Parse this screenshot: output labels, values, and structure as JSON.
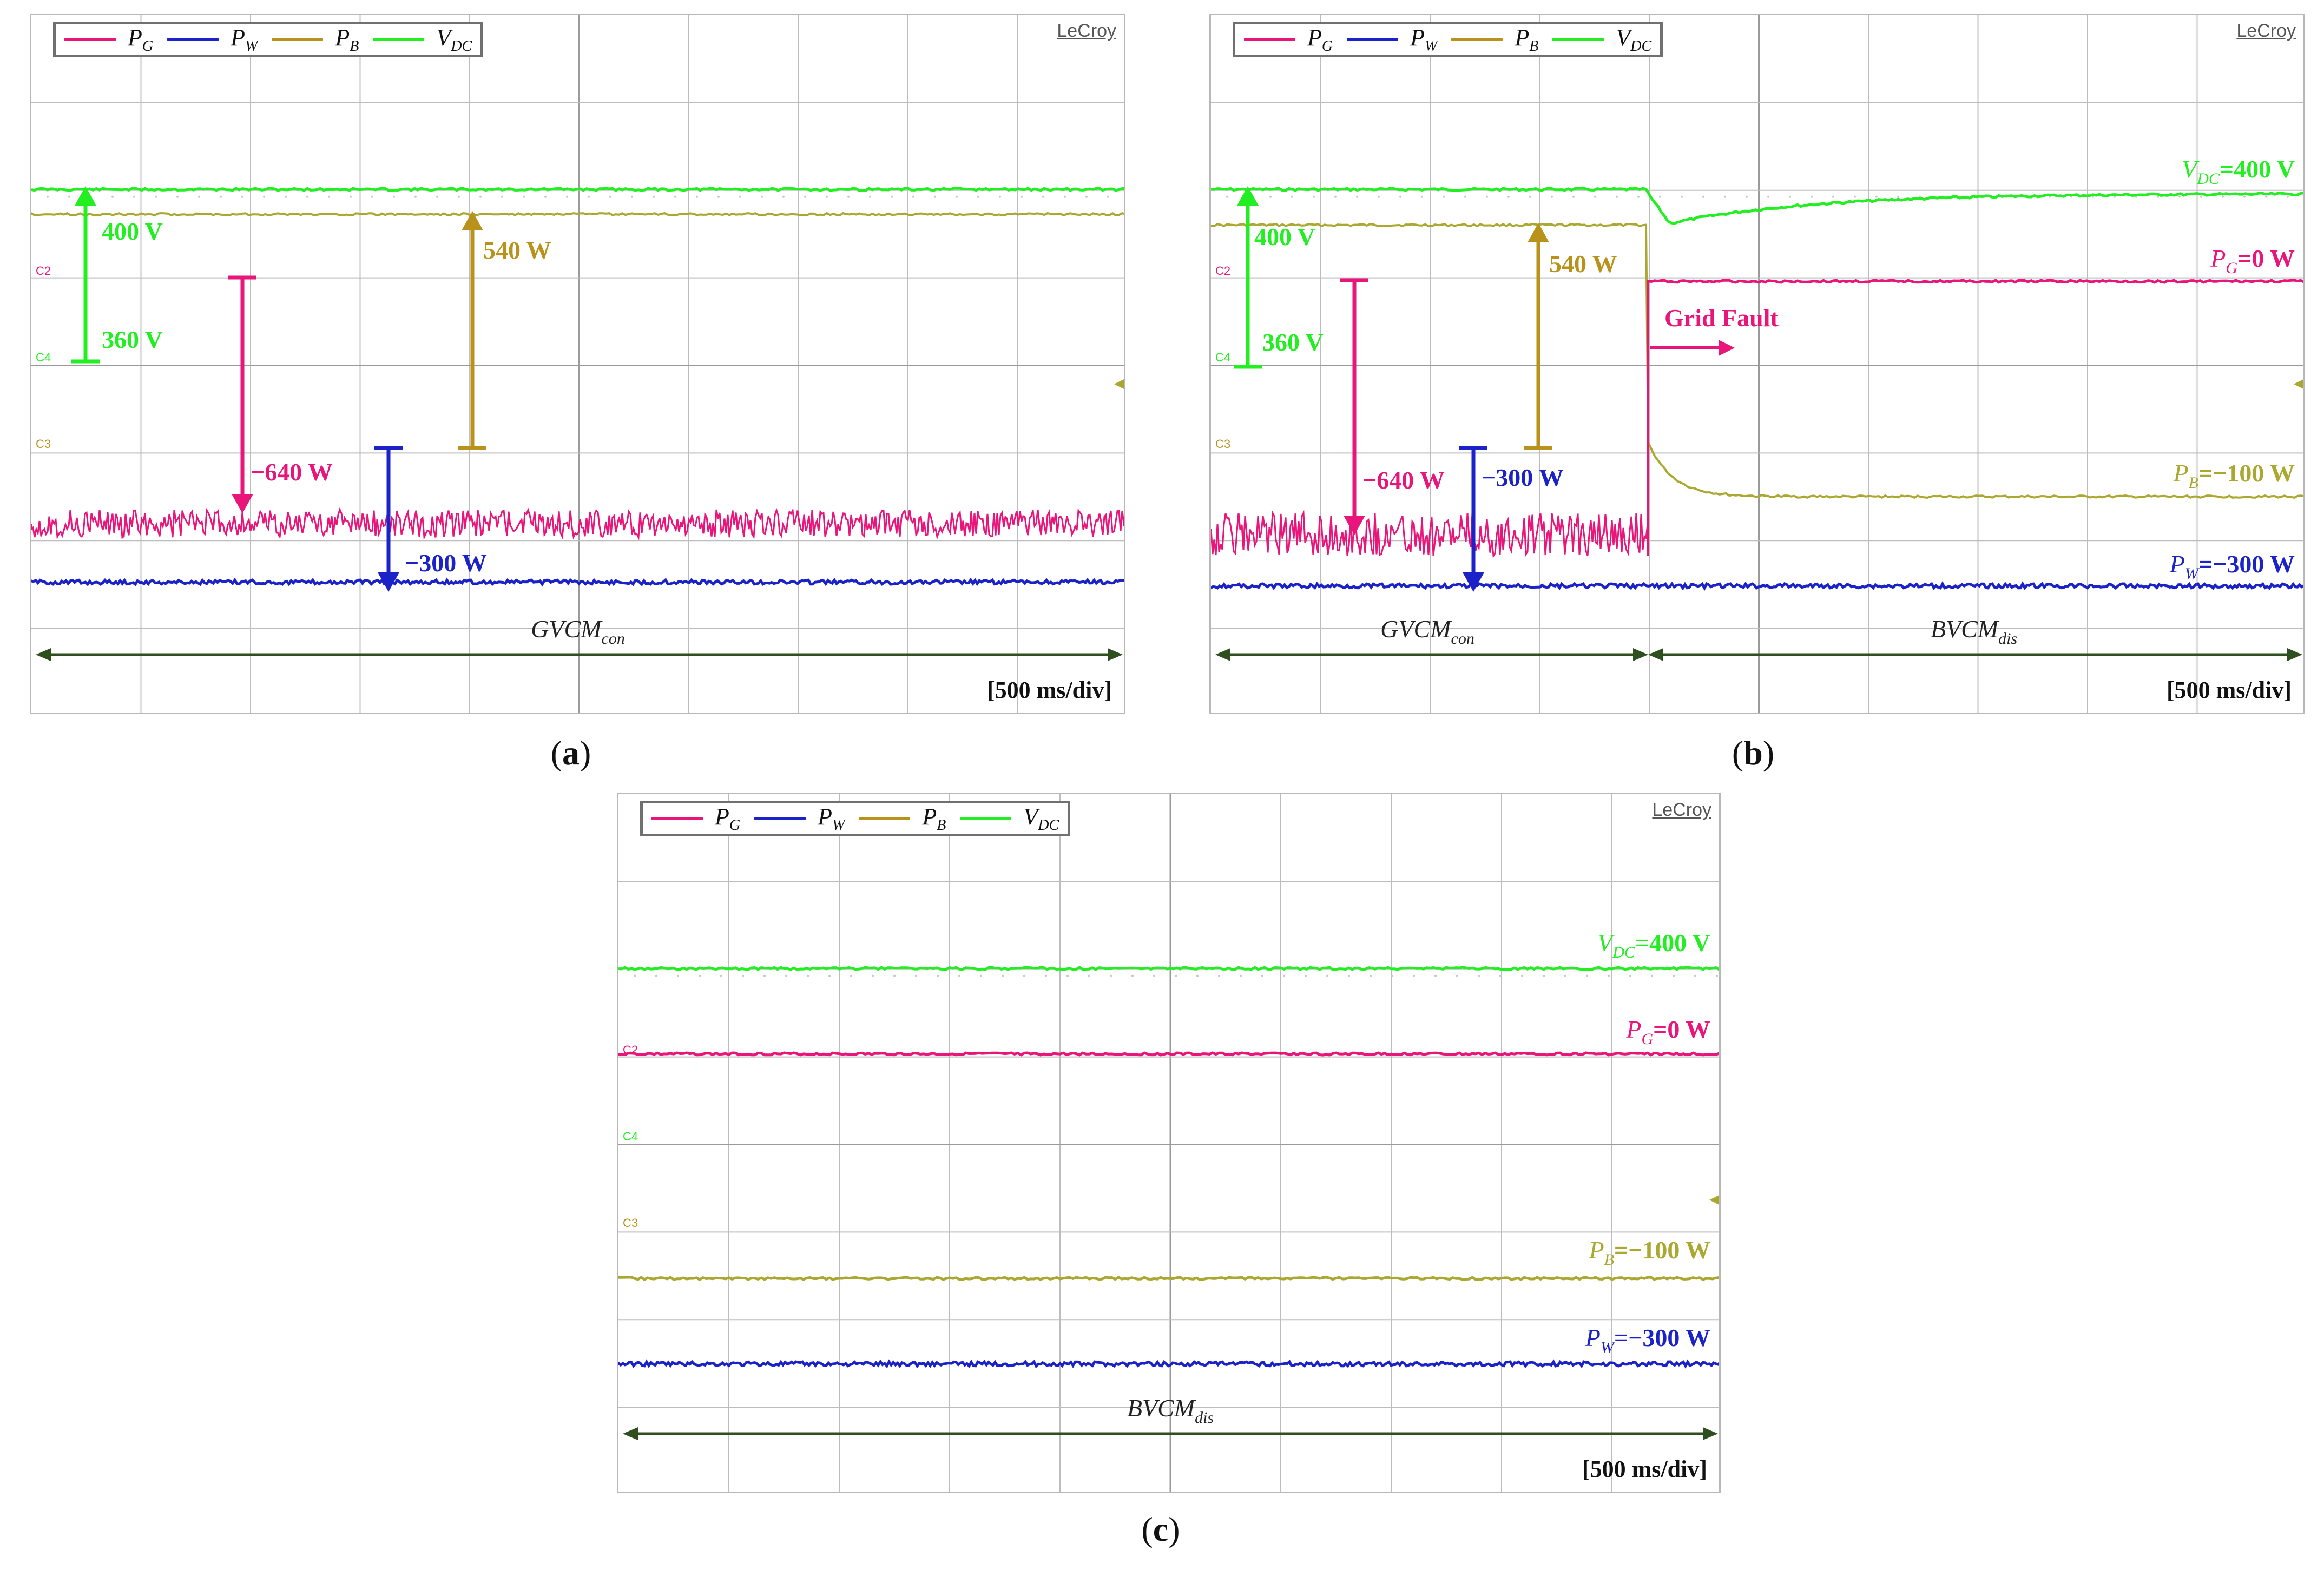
{
  "brand": "LeCroy",
  "timebase": "[500 ms/div]",
  "legend": [
    {
      "symbol": "P",
      "sub": "G",
      "color": "#e8157a"
    },
    {
      "symbol": "P",
      "sub": "W",
      "color": "#1a22c8"
    },
    {
      "symbol": "P",
      "sub": "B",
      "color": "#b8921a"
    },
    {
      "symbol": "V",
      "sub": "DC",
      "color": "#22ee22"
    }
  ],
  "channel_tags": {
    "c2": "C2",
    "c4": "C4",
    "c3": "C3"
  },
  "colors": {
    "pg": "#e8157a",
    "pw": "#1a22c8",
    "pb_arrow": "#b8921a",
    "pb_trace": "#aaa830",
    "vdc": "#22ee22",
    "mode": "#2f4f1f",
    "grid": "#bdbdbd"
  },
  "panels": {
    "a": {
      "caption_open": "(",
      "caption_letter": "a",
      "caption_close": ")"
    },
    "b": {
      "caption_open": "(",
      "caption_letter": "b",
      "caption_close": ")"
    },
    "c": {
      "caption_open": "(",
      "caption_letter": "c",
      "caption_close": ")"
    }
  },
  "chart_data": [
    {
      "type": "line",
      "title": "(a)",
      "xlabel": "time [500 ms/div]",
      "divisions": {
        "x": 10,
        "y": 8
      },
      "series": [
        {
          "name": "V_DC",
          "level": "400 V"
        },
        {
          "name": "P_B",
          "level": "540 W"
        },
        {
          "name": "P_G",
          "level": "-640 W"
        },
        {
          "name": "P_W",
          "level": "-300 W"
        }
      ],
      "annotations": [
        "400 V",
        "360 V",
        "540 W",
        "−640 W",
        "−300 W"
      ],
      "mode": {
        "base": "GVCM",
        "sub": "con"
      }
    },
    {
      "type": "line",
      "title": "(b)",
      "xlabel": "time [500 ms/div]",
      "divisions": {
        "x": 10,
        "y": 8
      },
      "event": "Grid Fault",
      "series": [
        {
          "name": "V_DC",
          "before": "400 V",
          "after": "400 V"
        },
        {
          "name": "P_G",
          "before": "-640 W",
          "after": "0 W"
        },
        {
          "name": "P_B",
          "before": "540 W",
          "after": "-100 W"
        },
        {
          "name": "P_W",
          "before": "-300 W",
          "after": "-300 W"
        }
      ],
      "annotations": [
        "400 V",
        "360 V",
        "540 W",
        "−640 W",
        "−300 W"
      ],
      "end_labels": {
        "vdc": {
          "sym": "V",
          "sub": "DC",
          "val": "=400 V"
        },
        "pg": {
          "sym": "P",
          "sub": "G",
          "val": "=0 W"
        },
        "pb": {
          "sym": "P",
          "sub": "B",
          "val": "=−100 W"
        },
        "pw": {
          "sym": "P",
          "sub": "W",
          "val": "=−300 W"
        }
      },
      "modes": [
        {
          "base": "GVCM",
          "sub": "con"
        },
        {
          "base": "BVCM",
          "sub": "dis"
        }
      ]
    },
    {
      "type": "line",
      "title": "(c)",
      "xlabel": "time [500 ms/div]",
      "divisions": {
        "x": 10,
        "y": 8
      },
      "series": [
        {
          "name": "V_DC",
          "level": "400 V"
        },
        {
          "name": "P_G",
          "level": "0 W"
        },
        {
          "name": "P_B",
          "level": "-100 W"
        },
        {
          "name": "P_W",
          "level": "-300 W"
        }
      ],
      "end_labels": {
        "vdc": {
          "sym": "V",
          "sub": "DC",
          "val": "=400 V"
        },
        "pg": {
          "sym": "P",
          "sub": "G",
          "val": "=0 W"
        },
        "pb": {
          "sym": "P",
          "sub": "B",
          "val": "=−100 W"
        },
        "pw": {
          "sym": "P",
          "sub": "W",
          "val": "=−300 W"
        }
      },
      "mode": {
        "base": "BVCM",
        "sub": "dis"
      }
    }
  ]
}
